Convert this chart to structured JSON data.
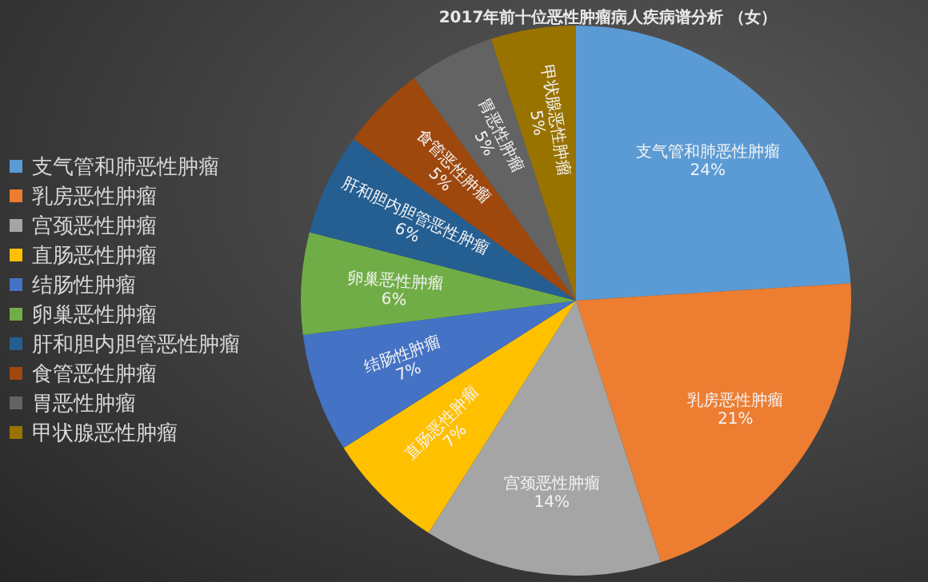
{
  "chart_data": {
    "type": "pie",
    "title": "2017年前十位恶性肿瘤病人疾病谱分析 （女）",
    "categories": [
      "支气管和肺恶性肿瘤",
      "乳房恶性肿瘤",
      "宫颈恶性肿瘤",
      "直肠恶性肿瘤",
      "结肠性肿瘤",
      "卵巢恶性肿瘤",
      "肝和胆内胆管恶性肿瘤",
      "食管恶性肿瘤",
      "胃恶性肿瘤",
      "甲状腺恶性肿瘤"
    ],
    "values": [
      24,
      21,
      14,
      7,
      7,
      6,
      6,
      5,
      5,
      5
    ],
    "value_labels": [
      "24%",
      "21%",
      "14%",
      "7%",
      "7%",
      "6%",
      "6%",
      "5%",
      "5%",
      "5%"
    ],
    "colors": [
      "#5b9bd5",
      "#ed7d31",
      "#a5a5a5",
      "#ffc000",
      "#4472c4",
      "#70ad47",
      "#255e91",
      "#9e480e",
      "#636363",
      "#997300"
    ],
    "legend": "left"
  }
}
